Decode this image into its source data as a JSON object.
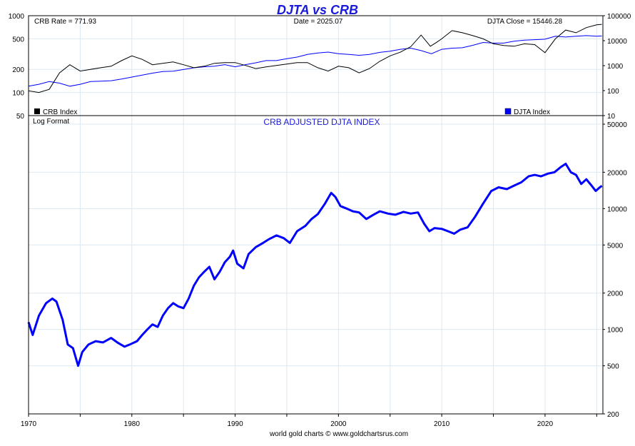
{
  "title": "DJTA vs CRB",
  "footer": "world gold charts © www.goldchartsrus.com",
  "colors": {
    "crb": "#000000",
    "djta": "#0000ff",
    "title": "#1a1adb",
    "grid": "#dde8f0"
  },
  "top_panel": {
    "crb_rate_label": "CRB Rate = 771.93",
    "date_label": "Date = 2025.07",
    "djta_close_label": "DJTA Close = 15446.28",
    "legend_crb": "CRB Index",
    "legend_djta": "DJTA Index"
  },
  "bottom_panel": {
    "title": "CRB ADJUSTED DJTA INDEX",
    "note": "Log Format"
  },
  "chart_data": [
    {
      "type": "line",
      "title": "DJTA vs CRB",
      "x_ticks": [
        "1970",
        "1980",
        "1990",
        "2000",
        "2010",
        "2020"
      ],
      "y_left_ticks": [
        "50",
        "100",
        "200",
        "500",
        "1000"
      ],
      "y_right_ticks": [
        "10",
        "100",
        "1000",
        "10000",
        "100000"
      ],
      "y_scale": "log",
      "ylim_left": [
        50,
        1000
      ],
      "ylim_right": [
        10,
        100000
      ],
      "xlim": [
        1970,
        2025.6
      ],
      "legend": "bottom",
      "series": [
        {
          "name": "CRB Index",
          "axis": "left",
          "points": [
            [
              1970,
              105
            ],
            [
              1971,
              100
            ],
            [
              1972,
              110
            ],
            [
              1973,
              180
            ],
            [
              1974,
              230
            ],
            [
              1975,
              190
            ],
            [
              1976,
              200
            ],
            [
              1977,
              210
            ],
            [
              1978,
              220
            ],
            [
              1979,
              260
            ],
            [
              1980,
              300
            ],
            [
              1981,
              270
            ],
            [
              1982,
              230
            ],
            [
              1983,
              240
            ],
            [
              1984,
              250
            ],
            [
              1985,
              230
            ],
            [
              1986,
              210
            ],
            [
              1987,
              220
            ],
            [
              1988,
              240
            ],
            [
              1989,
              245
            ],
            [
              1990,
              245
            ],
            [
              1991,
              225
            ],
            [
              1992,
              205
            ],
            [
              1993,
              215
            ],
            [
              1994,
              225
            ],
            [
              1995,
              235
            ],
            [
              1996,
              245
            ],
            [
              1997,
              245
            ],
            [
              1998,
              210
            ],
            [
              1999,
              190
            ],
            [
              2000,
              220
            ],
            [
              2001,
              210
            ],
            [
              2002,
              180
            ],
            [
              2003,
              205
            ],
            [
              2004,
              255
            ],
            [
              2005,
              300
            ],
            [
              2006,
              335
            ],
            [
              2007,
              395
            ],
            [
              2008,
              560
            ],
            [
              2008.9,
              400
            ],
            [
              2009.5,
              450
            ],
            [
              2010,
              500
            ],
            [
              2011,
              640
            ],
            [
              2012,
              600
            ],
            [
              2013,
              550
            ],
            [
              2014,
              500
            ],
            [
              2015,
              430
            ],
            [
              2016,
              410
            ],
            [
              2017,
              400
            ],
            [
              2018,
              430
            ],
            [
              2019,
              420
            ],
            [
              2020,
              330
            ],
            [
              2021,
              500
            ],
            [
              2022,
              650
            ],
            [
              2023,
              600
            ],
            [
              2024,
              700
            ],
            [
              2025,
              760
            ],
            [
              2025.5,
              772
            ]
          ]
        },
        {
          "name": "DJTA Index",
          "axis": "right",
          "points": [
            [
              1970,
              150
            ],
            [
              1971,
              180
            ],
            [
              1972,
              230
            ],
            [
              1973,
              200
            ],
            [
              1974,
              150
            ],
            [
              1975,
              180
            ],
            [
              1976,
              230
            ],
            [
              1977,
              240
            ],
            [
              1978,
              250
            ],
            [
              1979,
              290
            ],
            [
              1980,
              350
            ],
            [
              1981,
              420
            ],
            [
              1982,
              500
            ],
            [
              1983,
              580
            ],
            [
              1984,
              600
            ],
            [
              1985,
              700
            ],
            [
              1986,
              820
            ],
            [
              1987,
              900
            ],
            [
              1988,
              950
            ],
            [
              1989,
              1100
            ],
            [
              1990,
              900
            ],
            [
              1991,
              1100
            ],
            [
              1992,
              1300
            ],
            [
              1993,
              1600
            ],
            [
              1994,
              1600
            ],
            [
              1995,
              1900
            ],
            [
              1996,
              2200
            ],
            [
              1997,
              2800
            ],
            [
              1998,
              3200
            ],
            [
              1999,
              3500
            ],
            [
              2000,
              3000
            ],
            [
              2001,
              2800
            ],
            [
              2002,
              2600
            ],
            [
              2003,
              2800
            ],
            [
              2004,
              3400
            ],
            [
              2005,
              3800
            ],
            [
              2006,
              4500
            ],
            [
              2007,
              5000
            ],
            [
              2008,
              4000
            ],
            [
              2009,
              3000
            ],
            [
              2010,
              4500
            ],
            [
              2011,
              5000
            ],
            [
              2012,
              5200
            ],
            [
              2013,
              6500
            ],
            [
              2014,
              8500
            ],
            [
              2015,
              8000
            ],
            [
              2016,
              8000
            ],
            [
              2017,
              9500
            ],
            [
              2018,
              10500
            ],
            [
              2019,
              11000
            ],
            [
              2020,
              11500
            ],
            [
              2021,
              15000
            ],
            [
              2022,
              14000
            ],
            [
              2023,
              15000
            ],
            [
              2024,
              16000
            ],
            [
              2025,
              15000
            ],
            [
              2025.5,
              15446
            ]
          ]
        }
      ]
    },
    {
      "type": "line",
      "title": "CRB ADJUSTED DJTA INDEX",
      "x_ticks": [
        "1970",
        "1980",
        "1990",
        "2000",
        "2010",
        "2020"
      ],
      "y_right_ticks": [
        "200",
        "500",
        "1000",
        "2000",
        "5000",
        "10000",
        "20000",
        "50000"
      ],
      "y_scale": "log",
      "ylim": [
        200,
        50000
      ],
      "xlim": [
        1970,
        2025.6
      ],
      "series": [
        {
          "name": "CRB adjusted DJTA",
          "points": [
            [
              1970,
              1150
            ],
            [
              1970.4,
              900
            ],
            [
              1971,
              1300
            ],
            [
              1971.7,
              1650
            ],
            [
              1972.3,
              1800
            ],
            [
              1972.7,
              1700
            ],
            [
              1973.3,
              1200
            ],
            [
              1973.8,
              750
            ],
            [
              1974.3,
              700
            ],
            [
              1974.8,
              500
            ],
            [
              1975.2,
              650
            ],
            [
              1975.8,
              750
            ],
            [
              1976.5,
              800
            ],
            [
              1977.2,
              780
            ],
            [
              1978,
              850
            ],
            [
              1978.6,
              780
            ],
            [
              1979.3,
              720
            ],
            [
              1979.8,
              750
            ],
            [
              1980.5,
              800
            ],
            [
              1981,
              900
            ],
            [
              1981.5,
              1000
            ],
            [
              1982,
              1100
            ],
            [
              1982.5,
              1050
            ],
            [
              1983,
              1300
            ],
            [
              1983.5,
              1500
            ],
            [
              1984,
              1650
            ],
            [
              1984.5,
              1550
            ],
            [
              1985,
              1500
            ],
            [
              1985.5,
              1800
            ],
            [
              1986,
              2300
            ],
            [
              1986.5,
              2700
            ],
            [
              1987,
              3000
            ],
            [
              1987.5,
              3300
            ],
            [
              1988,
              2600
            ],
            [
              1988.5,
              3000
            ],
            [
              1989,
              3600
            ],
            [
              1989.5,
              4000
            ],
            [
              1989.8,
              4500
            ],
            [
              1990.2,
              3500
            ],
            [
              1990.8,
              3200
            ],
            [
              1991.3,
              4200
            ],
            [
              1992,
              4800
            ],
            [
              1992.7,
              5200
            ],
            [
              1993.3,
              5600
            ],
            [
              1994,
              6000
            ],
            [
              1994.7,
              5700
            ],
            [
              1995.3,
              5200
            ],
            [
              1996,
              6500
            ],
            [
              1996.8,
              7200
            ],
            [
              1997.4,
              8200
            ],
            [
              1998,
              9000
            ],
            [
              1998.7,
              11000
            ],
            [
              1999.3,
              13500
            ],
            [
              1999.7,
              12500
            ],
            [
              2000.2,
              10500
            ],
            [
              2000.8,
              10000
            ],
            [
              2001.4,
              9500
            ],
            [
              2002,
              9300
            ],
            [
              2002.7,
              8200
            ],
            [
              2003.3,
              8800
            ],
            [
              2004,
              9500
            ],
            [
              2004.8,
              9100
            ],
            [
              2005.5,
              8900
            ],
            [
              2006.3,
              9400
            ],
            [
              2007,
              9100
            ],
            [
              2007.7,
              9300
            ],
            [
              2008.3,
              7500
            ],
            [
              2008.8,
              6500
            ],
            [
              2009.3,
              6900
            ],
            [
              2010,
              6800
            ],
            [
              2010.6,
              6500
            ],
            [
              2011.2,
              6200
            ],
            [
              2011.8,
              6700
            ],
            [
              2012.5,
              7000
            ],
            [
              2013.2,
              8500
            ],
            [
              2014,
              11000
            ],
            [
              2014.8,
              14000
            ],
            [
              2015.5,
              15000
            ],
            [
              2016.3,
              14500
            ],
            [
              2017,
              15500
            ],
            [
              2017.7,
              16500
            ],
            [
              2018.4,
              18500
            ],
            [
              2019,
              19000
            ],
            [
              2019.6,
              18500
            ],
            [
              2020.3,
              19500
            ],
            [
              2020.9,
              20000
            ],
            [
              2021.5,
              22000
            ],
            [
              2022,
              23500
            ],
            [
              2022.5,
              20000
            ],
            [
              2023,
              19000
            ],
            [
              2023.5,
              16000
            ],
            [
              2024,
              17500
            ],
            [
              2024.5,
              15500
            ],
            [
              2024.9,
              14000
            ],
            [
              2025.3,
              15000
            ],
            [
              2025.5,
              15446
            ]
          ]
        }
      ]
    }
  ]
}
